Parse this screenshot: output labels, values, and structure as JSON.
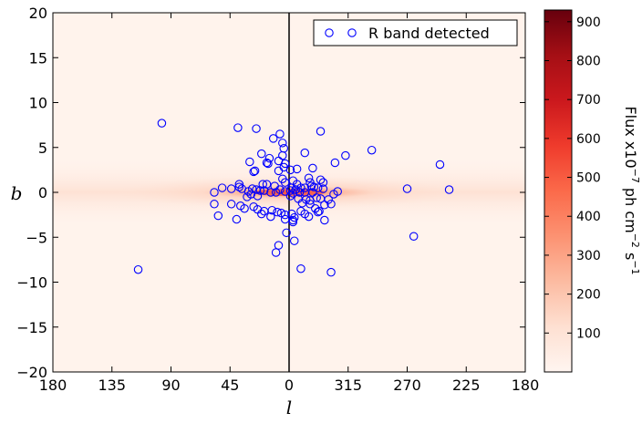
{
  "chart_data": {
    "type": "scatter",
    "xlabel": "l",
    "ylabel": "b",
    "x_tick_labels": [
      "180",
      "135",
      "90",
      "45",
      "0",
      "315",
      "270",
      "225",
      "180"
    ],
    "y_ticks": [
      -20,
      -15,
      -10,
      -5,
      0,
      5,
      10,
      15,
      20
    ],
    "y_tick_labels": [
      "−20",
      "−15",
      "−10",
      "−5",
      "0",
      "5",
      "10",
      "15",
      "20"
    ],
    "xlim_l_display": [
      180,
      -180
    ],
    "ylim": [
      -20,
      20
    ],
    "background_map": "Galactic-plane flux map (intensity concentrated near b = 0, brightest near l = 0)",
    "colorbar": {
      "ticks": [
        100,
        200,
        300,
        400,
        500,
        600,
        700,
        800,
        900
      ],
      "range": [
        0,
        930
      ],
      "label_prefix": "Flux x10",
      "label_exp1": "−7",
      "label_mid": " ph cm",
      "label_exp2": "−2",
      "label_suffix1": " s",
      "label_exp3": "−1",
      "colors": [
        "#fff5f0",
        "#fee0d2",
        "#fcbba1",
        "#fc9272",
        "#fb6a4a",
        "#ef3b2c",
        "#cb181d",
        "#a50f15",
        "#67000d"
      ]
    },
    "legend": {
      "label": "R band detected",
      "position": "top-right"
    },
    "series": [
      {
        "name": "R band detected",
        "marker": "open-circle",
        "color": "#0000ff",
        "points": [
          [
            97,
            7.7
          ],
          [
            39,
            7.2
          ],
          [
            25,
            7.1
          ],
          [
            -24,
            6.8
          ],
          [
            7,
            6.5
          ],
          [
            -63,
            4.7
          ],
          [
            -43,
            4.1
          ],
          [
            -35,
            3.3
          ],
          [
            -115,
            3.1
          ],
          [
            5,
            5.5
          ],
          [
            4,
            4.9
          ],
          [
            12,
            6.0
          ],
          [
            -12,
            4.4
          ],
          [
            5,
            4.1
          ],
          [
            21,
            4.3
          ],
          [
            8,
            3.5
          ],
          [
            15,
            3.8
          ],
          [
            17,
            3.3
          ],
          [
            26,
            2.4
          ],
          [
            27,
            2.3
          ],
          [
            30,
            3.4
          ],
          [
            16,
            3.2
          ],
          [
            3,
            3.2
          ],
          [
            4,
            2.8
          ],
          [
            8,
            2.4
          ],
          [
            -1,
            2.5
          ],
          [
            -6,
            2.6
          ],
          [
            -18,
            2.7
          ],
          [
            -15,
            1.6
          ],
          [
            -16,
            1.1
          ],
          [
            -24,
            1.4
          ],
          [
            38,
            0.9
          ],
          [
            38,
            0.6
          ],
          [
            51,
            0.5
          ],
          [
            57,
            0.0
          ],
          [
            20,
            0.9
          ],
          [
            17,
            0.9
          ],
          [
            11,
            0.7
          ],
          [
            3,
            1.1
          ],
          [
            5,
            1.5
          ],
          [
            -3,
            1.3
          ],
          [
            -6,
            0.9
          ],
          [
            -9,
            0.5
          ],
          [
            -12,
            0.5
          ],
          [
            -17,
            0.7
          ],
          [
            -22,
            0.5
          ],
          [
            -26,
            0.4
          ],
          [
            -2,
            0.5
          ],
          [
            -5,
            0.3
          ],
          [
            -18,
            0.0
          ],
          [
            -12,
            0.0
          ],
          [
            -8,
            0.0
          ],
          [
            -3,
            -0.1
          ],
          [
            3,
            0.1
          ],
          [
            7,
            0.3
          ],
          [
            10,
            0.0
          ],
          [
            14,
            0.0
          ],
          [
            19,
            0.2
          ],
          [
            22,
            0.2
          ],
          [
            25,
            0.3
          ],
          [
            28,
            0.4
          ],
          [
            31,
            0.1
          ],
          [
            36,
            0.4
          ],
          [
            44,
            0.4
          ],
          [
            24,
            -0.4
          ],
          [
            29,
            -0.2
          ],
          [
            32,
            -0.5
          ],
          [
            34,
            -1.8
          ],
          [
            -1,
            -0.4
          ],
          [
            -7,
            -0.7
          ],
          [
            -13,
            -0.8
          ],
          [
            -16,
            -0.9
          ],
          [
            -21,
            -0.6
          ],
          [
            -24,
            -0.7
          ],
          [
            -90,
            0.4
          ],
          [
            -122,
            0.3
          ],
          [
            57,
            -1.3
          ],
          [
            44,
            -1.3
          ],
          [
            37,
            -1.5
          ],
          [
            27,
            -1.6
          ],
          [
            24,
            -1.9
          ],
          [
            19,
            -2.1
          ],
          [
            13,
            -2.0
          ],
          [
            9,
            -2.2
          ],
          [
            6,
            -2.3
          ],
          [
            3,
            -2.5
          ],
          [
            -2,
            -2.4
          ],
          [
            -4,
            -2.8
          ],
          [
            -9,
            -2.1
          ],
          [
            -12,
            -2.4
          ],
          [
            -16,
            -1.3
          ],
          [
            -20,
            -1.8
          ],
          [
            -22,
            -2.2
          ],
          [
            -27,
            -1.4
          ],
          [
            -30,
            -0.8
          ],
          [
            -34,
            -0.2
          ],
          [
            -37,
            0.1
          ],
          [
            54,
            -2.6
          ],
          [
            40,
            -3.0
          ],
          [
            21,
            -2.4
          ],
          [
            14,
            -2.7
          ],
          [
            3,
            -3.0
          ],
          [
            -3,
            -3.1
          ],
          [
            -3,
            -3.3
          ],
          [
            -15,
            -2.7
          ],
          [
            -27,
            -3.1
          ],
          [
            -23,
            -2.1
          ],
          [
            -32,
            -1.3
          ],
          [
            -95,
            -4.9
          ],
          [
            2,
            -4.5
          ],
          [
            -4,
            -5.4
          ],
          [
            8,
            -5.9
          ],
          [
            10,
            -6.7
          ],
          [
            -9,
            -8.5
          ],
          [
            -32,
            -8.9
          ],
          [
            115,
            -8.6
          ],
          [
            -19,
            0.6
          ],
          [
            -1,
            0.2
          ],
          [
            -10,
            -1.2
          ],
          [
            -26,
            1.1
          ]
        ]
      }
    ]
  }
}
